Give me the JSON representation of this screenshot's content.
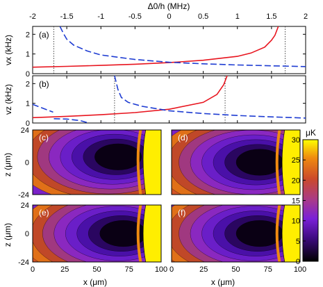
{
  "chart_data": [
    {
      "type": "line",
      "panel": "(a)",
      "x_axis": {
        "label": "Δ0/h (MHz)",
        "range": [
          -2,
          2
        ],
        "ticks": [
          "-2",
          "-1.5",
          "-1",
          "-0.5",
          "0",
          "0.5",
          "1",
          "1.5",
          "2"
        ],
        "position": "top"
      },
      "y_axis": {
        "label": "vx (kHz)",
        "range": [
          0,
          2.4
        ],
        "ticks": [
          "0",
          "1",
          "2"
        ]
      },
      "series": [
        {
          "color": "#e8141e",
          "style": "solid",
          "x": [
            -2.0,
            -1.5,
            -1.0,
            -0.5,
            0.0,
            0.5,
            1.0,
            1.2,
            1.4,
            1.5,
            1.55,
            1.6
          ],
          "y": [
            0.33,
            0.37,
            0.42,
            0.48,
            0.56,
            0.68,
            0.88,
            1.05,
            1.35,
            1.7,
            1.95,
            2.4
          ]
        },
        {
          "color": "#1e3cd2",
          "style": "dashed",
          "x": [
            -1.6,
            -1.55,
            -1.5,
            -1.4,
            -1.2,
            -1.0,
            -0.5,
            0.0,
            0.5,
            1.0,
            1.5,
            2.0
          ],
          "y": [
            2.4,
            2.05,
            1.75,
            1.45,
            1.15,
            0.95,
            0.72,
            0.58,
            0.5,
            0.44,
            0.4,
            0.36
          ]
        }
      ],
      "vlines": [
        -1.69,
        1.7
      ]
    },
    {
      "type": "line",
      "panel": "(b)",
      "y_axis": {
        "label": "vz (kHz)",
        "range": [
          0,
          2.4
        ],
        "ticks": [
          "0",
          "1",
          "2"
        ]
      },
      "series": [
        {
          "color": "#e8141e",
          "style": "solid",
          "x": [
            -2.0,
            -1.5,
            -1.0,
            -0.5,
            0.0,
            0.5,
            0.7,
            0.8,
            0.85
          ],
          "y": [
            0.27,
            0.34,
            0.42,
            0.53,
            0.7,
            1.05,
            1.45,
            1.95,
            2.4
          ]
        },
        {
          "color": "#1e3cd2",
          "style": "dashed",
          "x": [
            -2.0,
            -1.85,
            -1.7
          ],
          "y": [
            0.95,
            0.75,
            0.55
          ]
        },
        {
          "color": "#1e3cd2",
          "style": "dashed",
          "x": [
            -1.69,
            -1.5,
            -1.3,
            -1.18
          ],
          "y": [
            0.22,
            0.2,
            0.12,
            0.0
          ]
        },
        {
          "color": "#1e3cd2",
          "style": "dashed",
          "x": [
            -0.8,
            -0.75,
            -0.7,
            -0.6,
            -0.4,
            0.0,
            0.5,
            1.0,
            1.5,
            2.0
          ],
          "y": [
            2.4,
            1.7,
            1.3,
            1.05,
            0.85,
            0.62,
            0.48,
            0.38,
            0.31,
            0.25
          ]
        }
      ],
      "vlines": [
        -0.8,
        0.82
      ]
    },
    {
      "type": "heatmap",
      "panels": [
        "(c)",
        "(d)",
        "(e)",
        "(f)"
      ],
      "x_axis": {
        "label": "x (μm)",
        "range": [
          0,
          100
        ],
        "ticks": [
          "0",
          "25",
          "50",
          "75",
          "100"
        ]
      },
      "y_axis": {
        "label": "z (μm)",
        "range": [
          -24,
          24
        ],
        "ticks": [
          "-24",
          "0",
          "24"
        ]
      },
      "colorbar": {
        "unit": "μK",
        "range": [
          0,
          30
        ],
        "ticks": [
          "0",
          "5",
          "10",
          "15",
          "20",
          "25",
          "30"
        ]
      },
      "minima": [
        {
          "panel": "(c)",
          "x": 68,
          "z": 4
        },
        {
          "panel": "(d)",
          "x": 70,
          "z": 0
        },
        {
          "panel": "(e)",
          "x": 72,
          "z": 0
        },
        {
          "panel": "(f)",
          "x": 70,
          "z": 0
        }
      ]
    }
  ]
}
